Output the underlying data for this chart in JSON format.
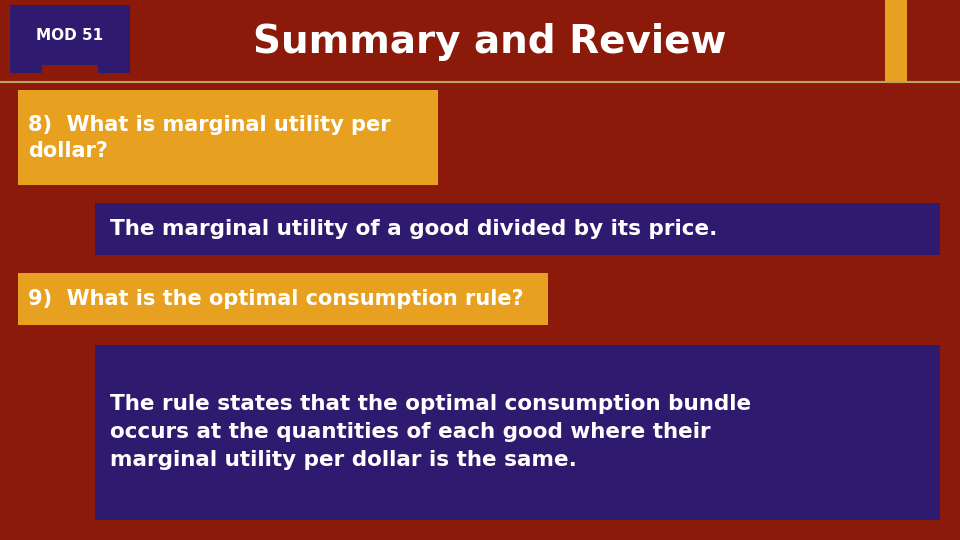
{
  "title": "Summary and Review",
  "mod_label": "MOD 51",
  "bg_color": "#8B1A0A",
  "header_bg": "#8B1A0A",
  "mod_box_color": "#2E1A6E",
  "gold_bar_color": "#E8A020",
  "title_color": "#FFFFFF",
  "title_fontsize": 28,
  "q1_text": "8)  What is marginal utility per\ndollar?",
  "q1_box_color": "#E8A020",
  "q1_text_color": "#FFFFFF",
  "a1_text": "The marginal utility of a good divided by its price.",
  "a1_box_color": "#2E1A6E",
  "a1_text_color": "#FFFFFF",
  "q2_text": "9)  What is the optimal consumption rule?",
  "q2_box_color": "#E8A020",
  "q2_text_color": "#FFFFFF",
  "a2_text": "The rule states that the optimal consumption bundle\noccurs at the quantities of each good where their\nmarginal utility per dollar is the same.",
  "a2_box_color": "#2E1A6E",
  "a2_text_color": "#FFFFFF"
}
